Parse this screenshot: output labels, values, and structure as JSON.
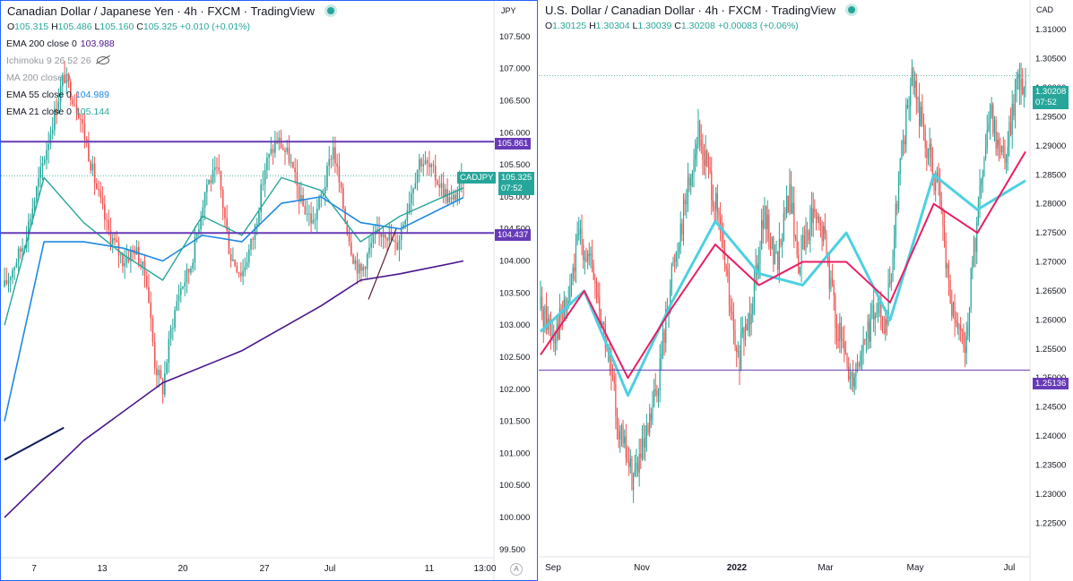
{
  "left": {
    "title": "Canadian Dollar / Japanese Yen · 4h · FXCM · TradingView",
    "ohlc": {
      "o_label": "O",
      "o": "105.315",
      "h_label": "H",
      "h": "105.486",
      "l_label": "L",
      "l": "105.160",
      "c_label": "C",
      "c": "105.325",
      "chg": "+0.010 (+0.01%)"
    },
    "indicators": [
      {
        "name": "EMA 200 close 0",
        "value": "103.988",
        "color": "#4a148c",
        "muted": false
      },
      {
        "name": "Ichimoku 9 26 52 26",
        "value": "",
        "color": "",
        "muted": true,
        "hidden_icon": "eye-hidden-icon"
      },
      {
        "name": "MA 200 close 0",
        "value": "",
        "color": "",
        "muted": true
      },
      {
        "name": "EMA 55 close 0",
        "value": "104.989",
        "color": "#1e88e5",
        "muted": false
      },
      {
        "name": "EMA 21 close 0",
        "value": "105.144",
        "color": "#26a69a",
        "muted": false
      }
    ],
    "currency": "JPY",
    "price_tag": {
      "symbol": "CADJPY",
      "price": "105.325",
      "countdown": "07:52",
      "color": "#26a69a"
    },
    "level_tags": [
      {
        "price": "105.861",
        "value": 105.861,
        "color": "#673ab7"
      },
      {
        "price": "104.437",
        "value": 104.437,
        "color": "#673ab7"
      }
    ],
    "x_labels": [
      "7",
      "13",
      "20",
      "27",
      "Jul",
      "11",
      "13:00"
    ],
    "settings_icon": "A"
  },
  "right": {
    "title": "U.S. Dollar / Canadian Dollar · 4h · FXCM · TradingView",
    "ohlc": {
      "o_label": "O",
      "o": "1.30125",
      "h_label": "H",
      "h": "1.30304",
      "l_label": "L",
      "l": "1.30039",
      "c_label": "C",
      "c": "1.30208",
      "chg": "+0.00083 (+0.06%)"
    },
    "currency": "CAD",
    "price_tag": {
      "price": "1.30208",
      "countdown": "07:52",
      "color": "#26a69a"
    },
    "level_tags": [
      {
        "price": "1.25136",
        "value": 1.25136,
        "color": "#673ab7"
      }
    ],
    "x_labels": [
      "Sep",
      "Nov",
      "2022",
      "Mar",
      "May",
      "Jul"
    ]
  },
  "chart_data": [
    {
      "type": "candlestick",
      "title": "Canadian Dollar / Japanese Yen · 4h · FXCM",
      "timeframe": "4h",
      "y_axis_ticks": [
        99.5,
        100.0,
        100.5,
        101.0,
        101.5,
        102.0,
        102.5,
        103.0,
        103.5,
        104.0,
        104.5,
        105.0,
        105.5,
        106.0,
        106.5,
        107.0,
        107.5
      ],
      "ylim": [
        99.4,
        108.0
      ],
      "x_ticks": [
        "7",
        "13",
        "20",
        "27",
        "Jul",
        "11",
        "13:00"
      ],
      "close_path": [
        [
          0,
          103.6
        ],
        [
          10,
          104.3
        ],
        [
          20,
          105.6
        ],
        [
          30,
          106.9
        ],
        [
          38,
          106.3
        ],
        [
          46,
          105.2
        ],
        [
          52,
          104.5
        ],
        [
          60,
          104.0
        ],
        [
          66,
          104.2
        ],
        [
          72,
          103.7
        ],
        [
          76,
          102.4
        ],
        [
          80,
          102.0
        ],
        [
          84,
          102.9
        ],
        [
          88,
          103.5
        ],
        [
          94,
          103.9
        ],
        [
          102,
          105.2
        ],
        [
          108,
          105.4
        ],
        [
          114,
          104.1
        ],
        [
          120,
          103.8
        ],
        [
          126,
          104.4
        ],
        [
          132,
          105.5
        ],
        [
          138,
          105.9
        ],
        [
          144,
          105.6
        ],
        [
          150,
          104.9
        ],
        [
          156,
          104.6
        ],
        [
          162,
          105.2
        ],
        [
          166,
          105.8
        ],
        [
          172,
          104.7
        ],
        [
          176,
          104.1
        ],
        [
          180,
          103.8
        ],
        [
          186,
          104.3
        ],
        [
          192,
          104.5
        ],
        [
          198,
          104.2
        ],
        [
          204,
          104.9
        ],
        [
          210,
          105.6
        ],
        [
          216,
          105.4
        ],
        [
          222,
          105.1
        ],
        [
          226,
          104.9
        ],
        [
          232,
          105.3
        ]
      ],
      "horizontal_levels": [
        105.861,
        104.437
      ],
      "ema200_path": [
        [
          0,
          100.0
        ],
        [
          40,
          101.2
        ],
        [
          80,
          102.1
        ],
        [
          120,
          102.6
        ],
        [
          160,
          103.3
        ],
        [
          180,
          103.7
        ],
        [
          200,
          103.8
        ],
        [
          232,
          104.0
        ]
      ],
      "ema55_path": [
        [
          0,
          101.5
        ],
        [
          20,
          104.3
        ],
        [
          40,
          104.3
        ],
        [
          60,
          104.2
        ],
        [
          80,
          104.0
        ],
        [
          100,
          104.4
        ],
        [
          120,
          104.3
        ],
        [
          140,
          104.9
        ],
        [
          160,
          105.0
        ],
        [
          180,
          104.6
        ],
        [
          200,
          104.5
        ],
        [
          232,
          104.99
        ]
      ],
      "ema21_path": [
        [
          0,
          103.0
        ],
        [
          20,
          105.3
        ],
        [
          40,
          104.6
        ],
        [
          60,
          104.1
        ],
        [
          80,
          103.7
        ],
        [
          100,
          104.7
        ],
        [
          120,
          104.4
        ],
        [
          140,
          105.3
        ],
        [
          160,
          105.1
        ],
        [
          180,
          104.3
        ],
        [
          200,
          104.7
        ],
        [
          232,
          105.14
        ]
      ],
      "trendlines": [
        {
          "from": [
            0,
            100.9
          ],
          "to": [
            30,
            101.4
          ]
        },
        {
          "from": [
            184,
            103.4
          ],
          "to": [
            198,
            104.5
          ]
        }
      ],
      "last_price": 105.325
    },
    {
      "type": "candlestick",
      "title": "U.S. Dollar / Canadian Dollar · 4h · FXCM",
      "timeframe": "4h",
      "y_axis_ticks": [
        1.225,
        1.23,
        1.235,
        1.24,
        1.245,
        1.25,
        1.255,
        1.26,
        1.265,
        1.27,
        1.275,
        1.28,
        1.285,
        1.29,
        1.295,
        1.3,
        1.305,
        1.31
      ],
      "ylim": [
        1.2195,
        1.3145
      ],
      "x_ticks": [
        "Sep",
        "Nov",
        "2022",
        "Mar",
        "May",
        "Jul"
      ],
      "close_path": [
        [
          0,
          1.262
        ],
        [
          6,
          1.258
        ],
        [
          12,
          1.262
        ],
        [
          18,
          1.275
        ],
        [
          24,
          1.268
        ],
        [
          30,
          1.256
        ],
        [
          36,
          1.241
        ],
        [
          42,
          1.233
        ],
        [
          48,
          1.238
        ],
        [
          54,
          1.25
        ],
        [
          60,
          1.268
        ],
        [
          66,
          1.28
        ],
        [
          72,
          1.292
        ],
        [
          78,
          1.284
        ],
        [
          84,
          1.271
        ],
        [
          90,
          1.252
        ],
        [
          96,
          1.262
        ],
        [
          102,
          1.278
        ],
        [
          108,
          1.27
        ],
        [
          114,
          1.282
        ],
        [
          118,
          1.27
        ],
        [
          124,
          1.278
        ],
        [
          130,
          1.274
        ],
        [
          136,
          1.258
        ],
        [
          142,
          1.25
        ],
        [
          148,
          1.256
        ],
        [
          154,
          1.262
        ],
        [
          158,
          1.258
        ],
        [
          164,
          1.285
        ],
        [
          170,
          1.302
        ],
        [
          176,
          1.291
        ],
        [
          182,
          1.282
        ],
        [
          188,
          1.262
        ],
        [
          194,
          1.254
        ],
        [
          200,
          1.278
        ],
        [
          206,
          1.295
        ],
        [
          212,
          1.288
        ],
        [
          218,
          1.3
        ],
        [
          222,
          1.302
        ]
      ],
      "horizontal_levels": [
        1.25136
      ],
      "ma_thick_path": [
        [
          0,
          1.258
        ],
        [
          20,
          1.265
        ],
        [
          40,
          1.247
        ],
        [
          60,
          1.263
        ],
        [
          80,
          1.277
        ],
        [
          100,
          1.268
        ],
        [
          120,
          1.266
        ],
        [
          140,
          1.275
        ],
        [
          160,
          1.26
        ],
        [
          180,
          1.285
        ],
        [
          200,
          1.279
        ],
        [
          222,
          1.284
        ]
      ],
      "ma_red_path": [
        [
          0,
          1.254
        ],
        [
          20,
          1.265
        ],
        [
          40,
          1.25
        ],
        [
          60,
          1.262
        ],
        [
          80,
          1.273
        ],
        [
          100,
          1.266
        ],
        [
          120,
          1.27
        ],
        [
          140,
          1.27
        ],
        [
          160,
          1.263
        ],
        [
          180,
          1.28
        ],
        [
          200,
          1.275
        ],
        [
          222,
          1.289
        ]
      ],
      "last_price": 1.30208
    }
  ]
}
